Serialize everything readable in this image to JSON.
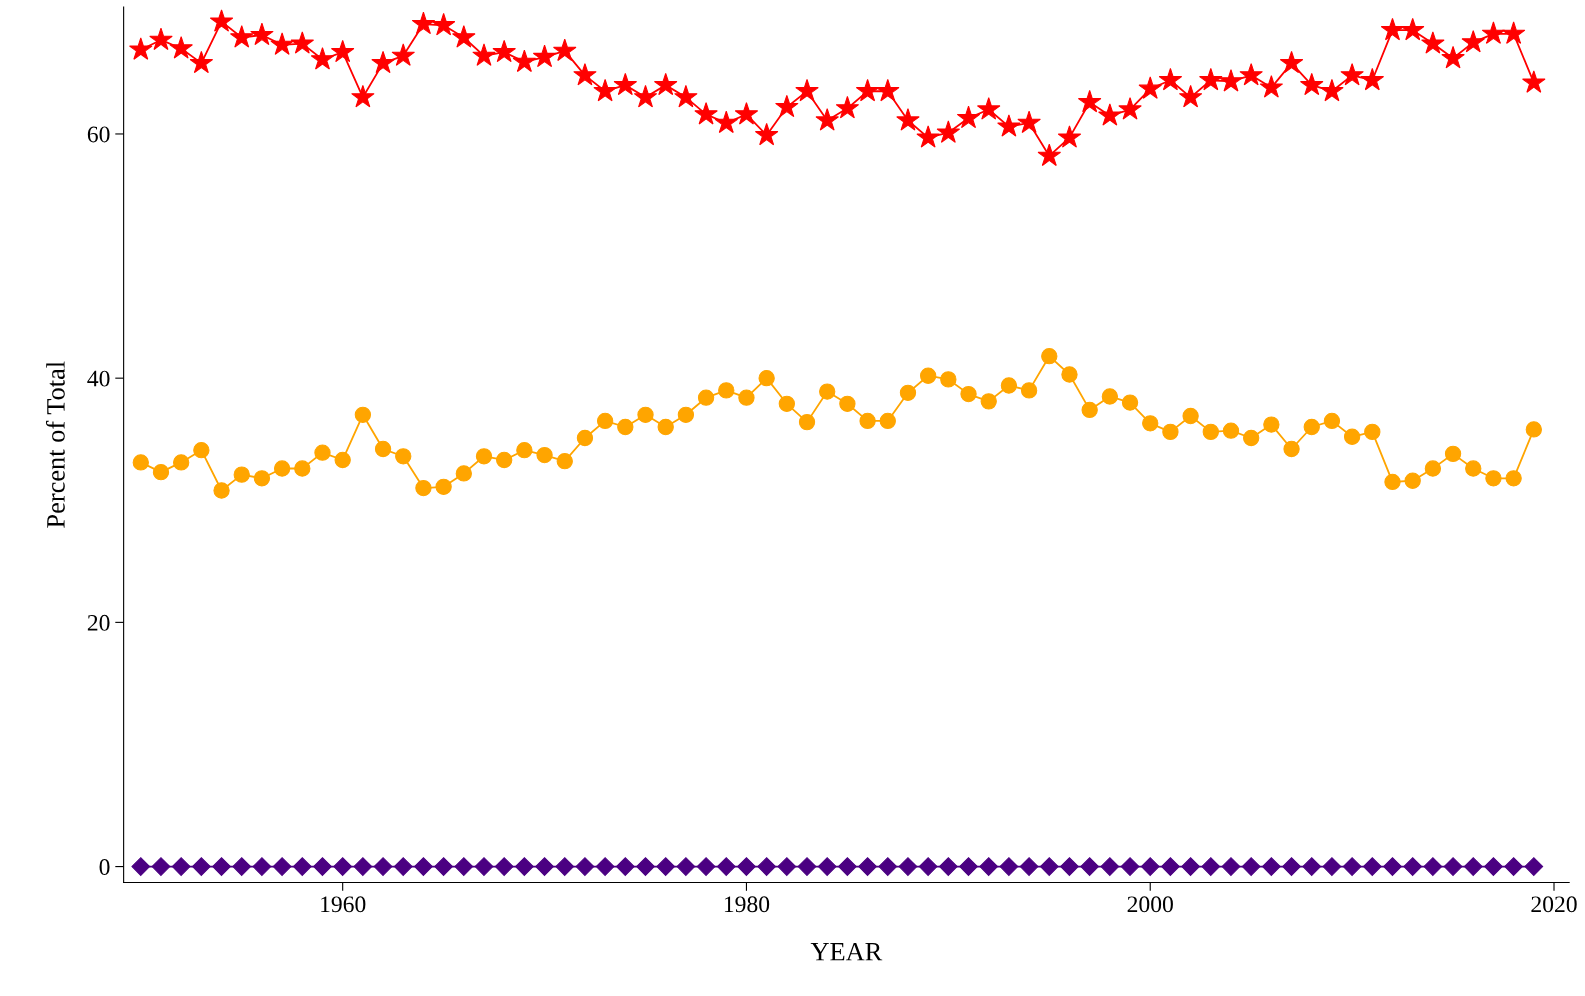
{
  "chart_data": {
    "type": "line",
    "xlabel": "YEAR",
    "ylabel": "Percent of Total",
    "x": [
      1950,
      1951,
      1952,
      1953,
      1954,
      1955,
      1956,
      1957,
      1958,
      1959,
      1960,
      1961,
      1962,
      1963,
      1964,
      1965,
      1966,
      1967,
      1968,
      1969,
      1970,
      1971,
      1972,
      1973,
      1974,
      1975,
      1976,
      1977,
      1978,
      1979,
      1980,
      1981,
      1982,
      1983,
      1984,
      1985,
      1986,
      1987,
      1988,
      1989,
      1990,
      1991,
      1992,
      1993,
      1994,
      1995,
      1996,
      1997,
      1998,
      1999,
      2000,
      2001,
      2002,
      2003,
      2004,
      2005,
      2006,
      2007,
      2008,
      2009,
      2010,
      2011,
      2012,
      2013,
      2014,
      2015,
      2016,
      2017,
      2018,
      2019
    ],
    "series": [
      {
        "color": "#ff0000",
        "marker": "star",
        "values": [
          66.9,
          67.7,
          67.0,
          65.8,
          69.2,
          67.9,
          68.1,
          67.3,
          67.4,
          66.1,
          66.7,
          63.0,
          65.8,
          66.4,
          69.0,
          68.9,
          67.9,
          66.4,
          66.7,
          65.9,
          66.3,
          66.8,
          64.8,
          63.5,
          64.0,
          63.0,
          64.0,
          63.0,
          61.6,
          60.9,
          61.6,
          59.9,
          62.2,
          63.5,
          61.1,
          62.1,
          63.5,
          63.5,
          61.1,
          59.7,
          60.1,
          61.3,
          62.0,
          60.6,
          60.9,
          58.2,
          59.7,
          62.6,
          61.5,
          62.0,
          63.7,
          64.4,
          63.0,
          64.4,
          64.3,
          64.8,
          63.8,
          65.8,
          64.0,
          63.5,
          64.8,
          64.4,
          68.5,
          68.5,
          67.4,
          66.2,
          67.5,
          68.2,
          68.2,
          64.2
        ]
      },
      {
        "color": "#ffa500",
        "marker": "circle",
        "values": [
          33.1,
          32.3,
          33.1,
          34.1,
          30.8,
          32.1,
          31.8,
          32.6,
          32.6,
          33.9,
          33.3,
          37.0,
          34.2,
          33.6,
          31.0,
          31.1,
          32.2,
          33.6,
          33.3,
          34.1,
          33.7,
          33.2,
          35.1,
          36.5,
          36.0,
          37.0,
          36.0,
          37.0,
          38.4,
          39.0,
          38.4,
          40.0,
          37.9,
          36.4,
          38.9,
          37.9,
          36.5,
          36.5,
          38.8,
          40.2,
          39.9,
          38.7,
          38.1,
          39.4,
          39.0,
          41.8,
          40.3,
          37.4,
          38.5,
          38.0,
          36.3,
          35.6,
          36.9,
          35.6,
          35.7,
          35.1,
          36.2,
          34.2,
          36.0,
          36.5,
          35.2,
          35.6,
          31.5,
          31.6,
          32.6,
          33.8,
          32.6,
          31.8,
          31.8,
          35.8
        ]
      },
      {
        "color": "#4b0082",
        "marker": "diamond",
        "values": [
          0,
          0,
          0,
          0,
          0,
          0,
          0,
          0,
          0,
          0,
          0,
          0,
          0,
          0,
          0,
          0,
          0,
          0,
          0,
          0,
          0,
          0,
          0,
          0,
          0,
          0,
          0,
          0,
          0,
          0,
          0,
          0,
          0,
          0,
          0,
          0,
          0,
          0,
          0,
          0,
          0,
          0,
          0,
          0,
          0,
          0,
          0,
          0,
          0,
          0,
          0,
          0,
          0,
          0,
          0,
          0,
          0,
          0,
          0,
          0,
          0,
          0,
          0,
          0,
          0,
          0,
          0,
          0,
          0,
          0
        ]
      }
    ],
    "xlim": [
      1949.15,
      2020.75
    ],
    "xticks": [
      1960,
      1980,
      2000,
      2020
    ],
    "ylim": [
      -1.3,
      70.4
    ],
    "yticks": [
      0,
      20,
      40,
      60
    ],
    "grid": false,
    "line_style": "solid"
  }
}
